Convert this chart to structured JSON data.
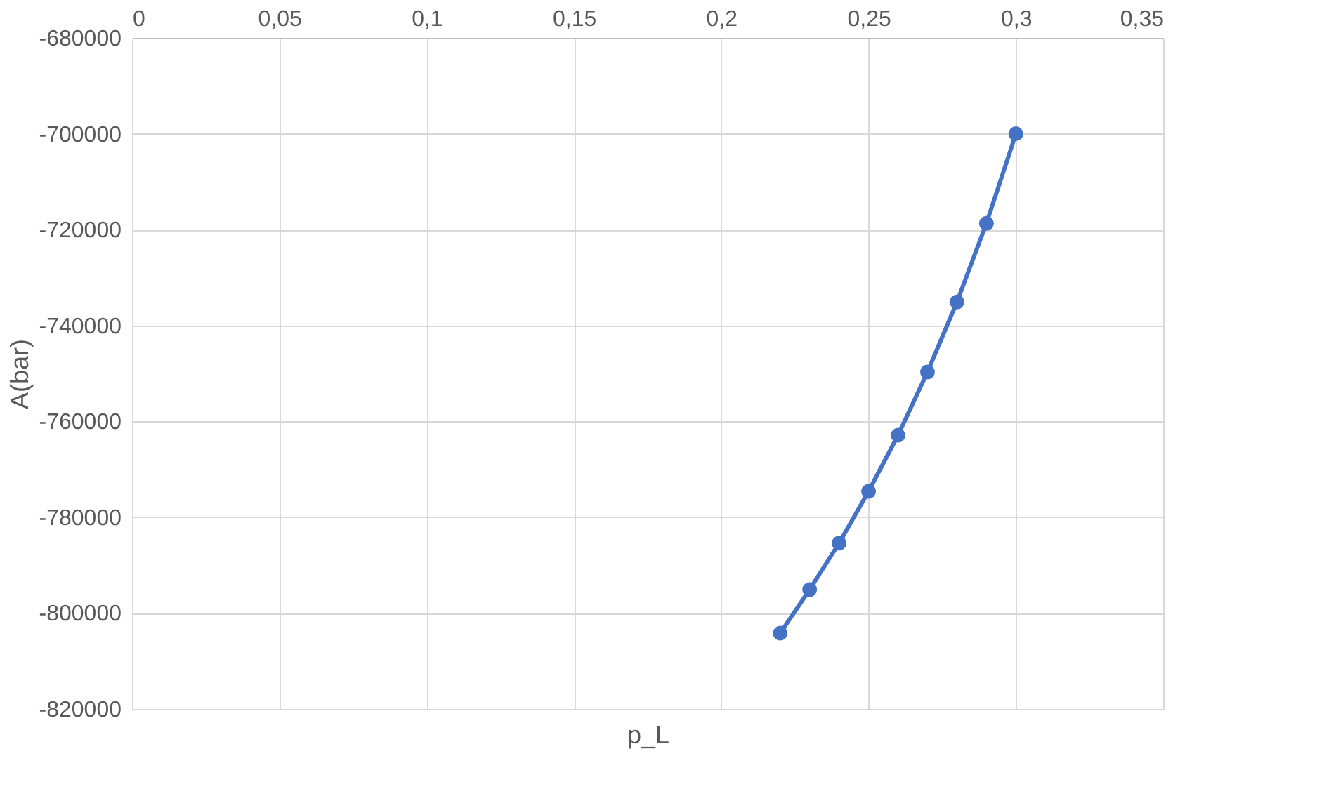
{
  "chart_data": {
    "type": "line",
    "xlabel": "p_L",
    "ylabel": "A(bar)",
    "x": [
      0.22,
      0.23,
      0.24,
      0.25,
      0.26,
      0.27,
      0.28,
      0.29,
      0.3
    ],
    "series": [
      {
        "color": "#4472c4",
        "values": [
          -804200,
          -795100,
          -785400,
          -774600,
          -762900,
          -749700,
          -735100,
          -718700,
          -700000
        ]
      }
    ],
    "xlim": [
      0,
      0.35
    ],
    "ylim": [
      -820000,
      -680000
    ],
    "xticks": [
      0,
      {
        "value": 0.05,
        "label": "0,05"
      },
      {
        "value": 0.1,
        "label": "0,1"
      },
      {
        "value": 0.15,
        "label": "0,15"
      },
      {
        "value": 0.2,
        "label": "0,2"
      },
      {
        "value": 0.25,
        "label": "0,25"
      },
      {
        "value": 0.3,
        "label": "0,3"
      },
      {
        "value": 0.35,
        "label": "0,35"
      }
    ],
    "yticks": [
      -820000,
      -800000,
      -780000,
      -760000,
      -740000,
      -720000,
      -700000,
      -680000
    ],
    "grid": true,
    "marker": "circle",
    "line_style": "solid"
  }
}
